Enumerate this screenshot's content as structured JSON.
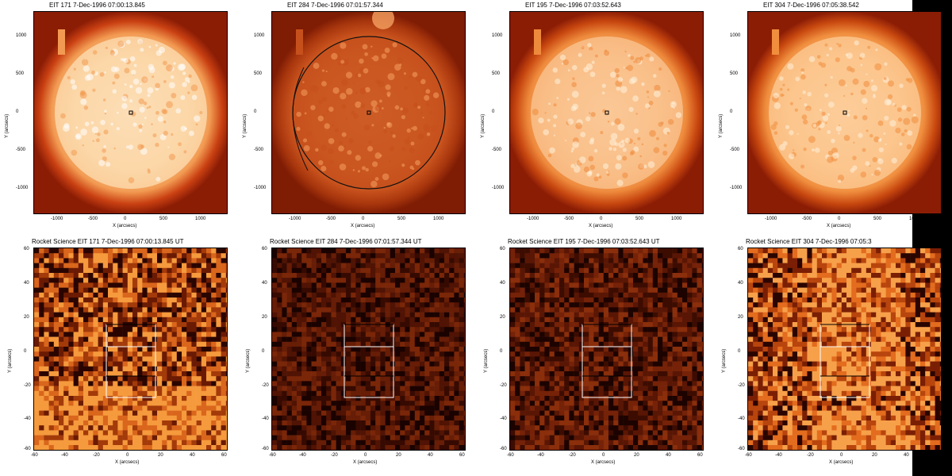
{
  "full_disk": [
    {
      "title": "EIT 171   7-Dec-1996 07:00:13.845",
      "xlabel": "X (arcsecs)",
      "ylabel": "Y (arcsecs)",
      "colors": [
        "#ffffff",
        "#fbd7a8",
        "#f29a52",
        "#c94012",
        "#8c1d05"
      ]
    },
    {
      "title": "EIT 284   7-Dec-1996 07:01:57.344",
      "xlabel": "X (arcsecs)",
      "ylabel": "Y (arcsecs)",
      "colors": [
        "#f5a060",
        "#e37a38",
        "#c6501c",
        "#a8360d",
        "#7e1c04"
      ]
    },
    {
      "title": "EIT 195   7-Dec-1996 07:03:52.643",
      "xlabel": "X (arcsecs)",
      "ylabel": "Y (arcsecs)",
      "colors": [
        "#fff3dd",
        "#f9c08a",
        "#ee8a3c",
        "#c7460f",
        "#8c1d05"
      ]
    },
    {
      "title": "EIT 304   7-Dec-1996 07:05:38.542",
      "xlabel": "X (arcsecs)",
      "ylabel": "Y (arcsecs)",
      "colors": [
        "#fff1da",
        "#fbc58d",
        "#f08e3e",
        "#c8480f",
        "#8c1d05"
      ]
    }
  ],
  "zoom": [
    {
      "title": "Rocket Science EIT 171   7-Dec-1996 07:00:13.845 UT",
      "xlabel": "X (arcsecs)",
      "ylabel": "Y (arcsecs)",
      "colors": [
        "#2a0500",
        "#6a1a03",
        "#a33a0a",
        "#d9661c",
        "#f59a3d"
      ]
    },
    {
      "title": "Rocket Science EIT 284   7-Dec-1996 07:01:57.344 UT",
      "xlabel": "X (arcsecs)",
      "ylabel": "Y (arcsecs)",
      "colors": [
        "#1a0200",
        "#360a01",
        "#501304",
        "#671d06",
        "#7a2608"
      ]
    },
    {
      "title": "Rocket Science EIT 195   7-Dec-1996 07:03:52.643 UT",
      "xlabel": "X (arcsecs)",
      "ylabel": "Y (arcsecs)",
      "colors": [
        "#1c0300",
        "#3d0c01",
        "#5a1604",
        "#752208",
        "#8a2e0b"
      ]
    },
    {
      "title": "Rocket Science EIT 304   7-Dec-1996 07:05:3",
      "xlabel": "X (arcsecs)",
      "ylabel": "Y (arcsecs)",
      "colors": [
        "#2a0500",
        "#7a1f04",
        "#b8450d",
        "#e36c1e",
        "#f7a04a"
      ]
    }
  ],
  "full_disk_xticks": [
    "-1000",
    "-500",
    "0",
    "500",
    "1000"
  ],
  "full_disk_yticks": [
    "1000",
    "500",
    "0",
    "-500",
    "-1000"
  ],
  "zoom_xticks": [
    "-60",
    "-40",
    "-20",
    "0",
    "20",
    "40",
    "60"
  ],
  "zoom_yticks": [
    "60",
    "40",
    "20",
    "0",
    "-20",
    "-40",
    "-60"
  ]
}
